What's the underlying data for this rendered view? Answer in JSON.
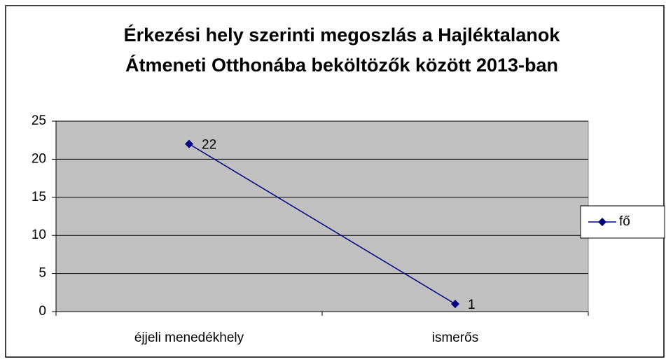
{
  "chart_data": {
    "type": "line",
    "title": [
      "Érkezési hely szerinti megoszlás a Hajléktalanok",
      "Átmeneti Otthonába beköltözők között 2013-ban"
    ],
    "categories": [
      "éjjeli menedékhely",
      "ismerős"
    ],
    "series": [
      {
        "name": "fő",
        "color": "#000080",
        "values": [
          22,
          1
        ]
      }
    ],
    "ylim": [
      0,
      25
    ],
    "yticks": [
      0,
      5,
      10,
      15,
      20,
      25
    ],
    "grid": true,
    "legend": "right",
    "plot_background": "#c0c0c0"
  }
}
